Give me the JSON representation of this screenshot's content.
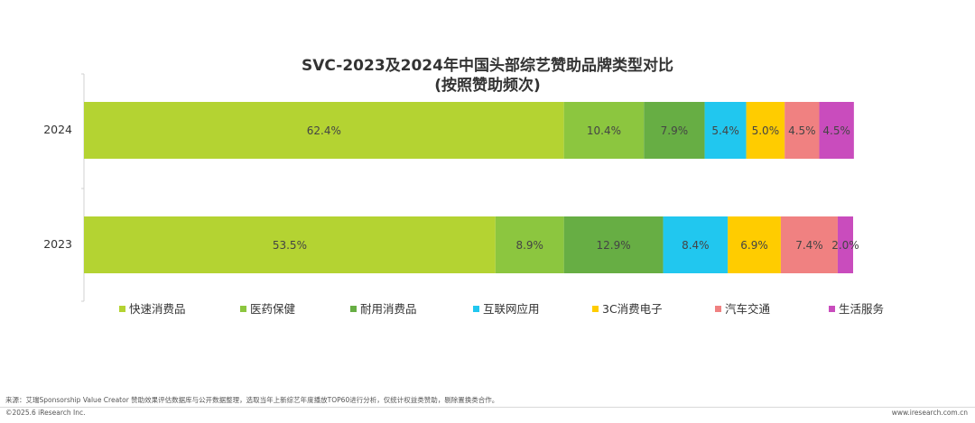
{
  "chart_data": {
    "type": "bar",
    "orientation": "horizontal",
    "stacked": true,
    "title": "SVC-2023及2024年中国头部综艺赞助品牌类型对比",
    "subtitle": "(按照赞助频次)",
    "categories": [
      "2024",
      "2023"
    ],
    "series": [
      {
        "name": "快速消费品",
        "color": "#b4d332",
        "values": [
          62.4,
          53.5
        ],
        "labels": [
          "62.4%",
          "53.5%"
        ]
      },
      {
        "name": "医药保健",
        "color": "#8cc63f",
        "values": [
          10.4,
          8.9
        ],
        "labels": [
          "10.4%",
          "8.9%"
        ]
      },
      {
        "name": "耐用消费品",
        "color": "#67ae44",
        "values": [
          7.9,
          12.9
        ],
        "labels": [
          "7.9%",
          "12.9%"
        ]
      },
      {
        "name": "互联网应用",
        "color": "#21c7ef",
        "values": [
          5.4,
          8.4
        ],
        "labels": [
          "5.4%",
          "8.4%"
        ]
      },
      {
        "name": "3C消费电子",
        "color": "#ffcc00",
        "values": [
          5.0,
          6.9
        ],
        "labels": [
          "5.0%",
          "6.9%"
        ]
      },
      {
        "name": "汽车交通",
        "color": "#f08181",
        "values": [
          4.5,
          7.4
        ],
        "labels": [
          "4.5%",
          "7.4%"
        ]
      },
      {
        "name": "生活服务",
        "color": "#c94cbd",
        "values": [
          4.5,
          2.0
        ],
        "labels": [
          "4.5%",
          "2.0%"
        ]
      }
    ],
    "xlim": [
      0,
      100
    ],
    "grid": false,
    "legend": "bottom"
  },
  "footer": {
    "source": "来源：艾瑞Sponsorship Value Creator 赞助效果评估数据库与公开数据整理，选取当年上新综艺年度播放TOP60进行分析，仅统计权益类赞助，剔除置换类合作。",
    "copyright": "©2025.6 iResearch Inc.",
    "website": "www.iresearch.com.cn"
  }
}
